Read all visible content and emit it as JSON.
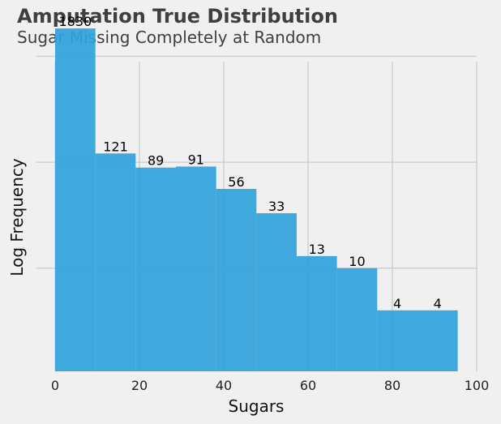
{
  "chart_data": {
    "type": "bar",
    "title": "Amputation True Distribution",
    "subtitle": "Sugar Missing Completely at Random",
    "xlabel": "Sugars",
    "ylabel": "Log Frequency",
    "xlim": [
      0,
      100
    ],
    "x_ticks": [
      "0",
      "20",
      "40",
      "60",
      "80",
      "100"
    ],
    "y_scale": "log",
    "y_tick_labels": [],
    "grid": true,
    "bin_edges": [
      0,
      9.55,
      19.1,
      28.65,
      38.2,
      47.75,
      57.3,
      66.85,
      76.4,
      85.95,
      95.5
    ],
    "values": [
      1830,
      121,
      89,
      91,
      56,
      33,
      13,
      10,
      4,
      4
    ],
    "value_labels": [
      "1830",
      "121",
      "89",
      "91",
      "56",
      "33",
      "13",
      "10",
      "4",
      "4"
    ],
    "bar_color": "#30a2da"
  }
}
